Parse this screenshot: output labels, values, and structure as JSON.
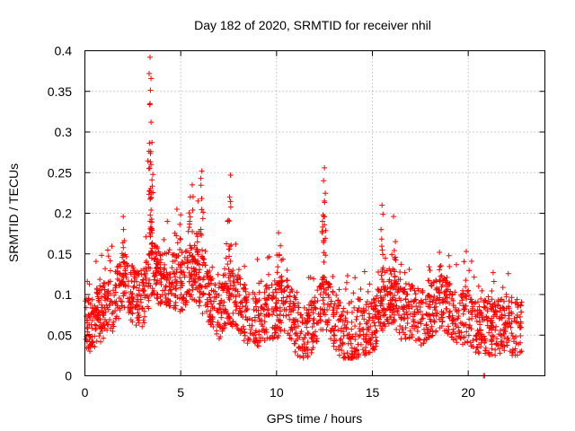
{
  "chart_data": {
    "type": "scatter",
    "title": "Day 182 of 2020, SRMTID for receiver nhil",
    "xlabel": "GPS time / hours",
    "ylabel": "SRMTID / TECUs",
    "xlim": [
      0,
      24
    ],
    "ylim": [
      0,
      0.4
    ],
    "x_ticks": [
      0,
      5,
      10,
      15,
      20
    ],
    "x_tick_labels": [
      "0",
      "5",
      "10",
      "15",
      "20"
    ],
    "y_ticks": [
      0,
      0.05,
      0.1,
      0.15,
      0.2,
      0.25,
      0.3,
      0.35,
      0.4
    ],
    "y_tick_labels": [
      "0",
      "0.05",
      "0.1",
      "0.15",
      "0.2",
      "0.25",
      "0.3",
      "0.35",
      "0.4"
    ],
    "grid": true,
    "marker": "+",
    "color": "#ff0000",
    "series": [
      {
        "name": "SRMTID",
        "profile": [
          [
            0.0,
            0.06
          ],
          [
            0.5,
            0.07
          ],
          [
            1.0,
            0.08
          ],
          [
            1.5,
            0.09
          ],
          [
            2.0,
            0.12
          ],
          [
            2.5,
            0.1
          ],
          [
            3.0,
            0.09
          ],
          [
            3.5,
            0.13
          ],
          [
            4.0,
            0.12
          ],
          [
            4.5,
            0.12
          ],
          [
            5.0,
            0.11
          ],
          [
            5.5,
            0.13
          ],
          [
            6.0,
            0.12
          ],
          [
            6.5,
            0.09
          ],
          [
            7.0,
            0.08
          ],
          [
            7.5,
            0.1
          ],
          [
            8.0,
            0.09
          ],
          [
            8.5,
            0.07
          ],
          [
            9.0,
            0.07
          ],
          [
            9.5,
            0.08
          ],
          [
            10.0,
            0.08
          ],
          [
            10.5,
            0.09
          ],
          [
            11.0,
            0.06
          ],
          [
            11.5,
            0.05
          ],
          [
            12.0,
            0.07
          ],
          [
            12.5,
            0.09
          ],
          [
            13.0,
            0.07
          ],
          [
            13.5,
            0.05
          ],
          [
            14.0,
            0.05
          ],
          [
            14.5,
            0.06
          ],
          [
            15.0,
            0.06
          ],
          [
            15.5,
            0.09
          ],
          [
            16.0,
            0.1
          ],
          [
            16.5,
            0.08
          ],
          [
            17.0,
            0.08
          ],
          [
            17.5,
            0.07
          ],
          [
            18.0,
            0.08
          ],
          [
            18.5,
            0.09
          ],
          [
            19.0,
            0.08
          ],
          [
            19.5,
            0.07
          ],
          [
            20.0,
            0.07
          ],
          [
            20.5,
            0.06
          ],
          [
            21.0,
            0.06
          ],
          [
            21.5,
            0.06
          ],
          [
            22.0,
            0.06
          ],
          [
            22.5,
            0.06
          ],
          [
            22.8,
            0.06
          ]
        ],
        "peaks": [
          [
            3.4,
            0.392
          ],
          [
            3.35,
            0.372
          ],
          [
            3.4,
            0.335
          ],
          [
            3.45,
            0.312
          ],
          [
            3.5,
            0.287
          ],
          [
            3.45,
            0.26
          ],
          [
            3.5,
            0.241
          ],
          [
            3.45,
            0.225
          ],
          [
            2.0,
            0.196
          ],
          [
            5.6,
            0.235
          ],
          [
            5.5,
            0.22
          ],
          [
            6.1,
            0.252
          ],
          [
            6.05,
            0.243
          ],
          [
            5.9,
            0.215
          ],
          [
            7.6,
            0.247
          ],
          [
            7.55,
            0.22
          ],
          [
            7.45,
            0.19
          ],
          [
            12.5,
            0.256
          ],
          [
            12.45,
            0.24
          ],
          [
            12.5,
            0.215
          ],
          [
            12.4,
            0.19
          ],
          [
            15.5,
            0.21
          ],
          [
            15.45,
            0.18
          ],
          [
            16.1,
            0.196
          ],
          [
            16.2,
            0.165
          ],
          [
            10.1,
            0.176
          ],
          [
            10.2,
            0.16
          ],
          [
            18.5,
            0.152
          ],
          [
            19.9,
            0.153
          ],
          [
            21.3,
            0.127
          ],
          [
            4.8,
            0.205
          ],
          [
            5.0,
            0.198
          ]
        ],
        "zero_points": [
          [
            20.8,
            0.0
          ],
          [
            20.85,
            0.0
          ]
        ]
      }
    ]
  }
}
